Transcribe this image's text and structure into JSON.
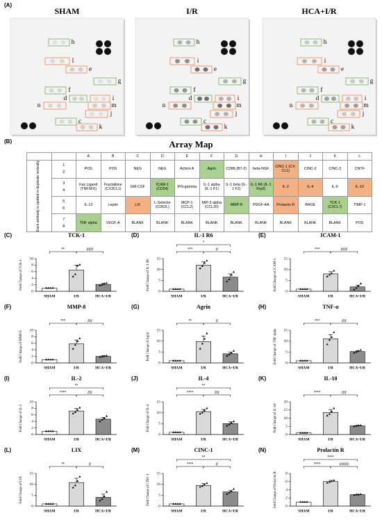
{
  "panel_a": {
    "label": "(A)",
    "blots": [
      {
        "title": "SHAM",
        "spots": [
          {
            "label": "h",
            "color": "#86c06a"
          },
          {
            "label": "l",
            "color": "#ee9a6c"
          },
          {
            "label": "e",
            "color": "#ee9a6c"
          },
          {
            "label": "g",
            "color": "#86c06a"
          },
          {
            "label": "f",
            "color": "#86c06a"
          },
          {
            "label": "d",
            "color": "#86c06a"
          },
          {
            "label": "i",
            "color": "#ee9a6c"
          },
          {
            "label": "n",
            "color": "#ee9a6c"
          },
          {
            "label": "m",
            "color": "#ee9a6c"
          },
          {
            "label": "j",
            "color": "#ee9a6c"
          },
          {
            "label": "c",
            "color": "#86c06a"
          },
          {
            "label": "k",
            "color": "#ee9a6c"
          }
        ]
      },
      {
        "title": "I/R",
        "spots": [
          {
            "label": "h",
            "color": "#86c06a"
          },
          {
            "label": "i",
            "color": "#ee9a6c"
          },
          {
            "label": "e",
            "color": "#ee9a6c"
          },
          {
            "label": "g",
            "color": "#86c06a"
          },
          {
            "label": "f",
            "color": "#86c06a"
          },
          {
            "label": "d",
            "color": "#86c06a"
          },
          {
            "label": "i",
            "color": "#ee9a6c"
          },
          {
            "label": "n",
            "color": "#ee9a6c"
          },
          {
            "label": "m",
            "color": "#ee9a6c"
          },
          {
            "label": "j",
            "color": "#ee9a6c"
          },
          {
            "label": "c",
            "color": "#86c06a"
          },
          {
            "label": "k",
            "color": "#ee9a6c"
          }
        ]
      },
      {
        "title": "HCA+I/R",
        "spots": [
          {
            "label": "h",
            "color": "#86c06a"
          },
          {
            "label": "i",
            "color": "#ee9a6c"
          },
          {
            "label": "e",
            "color": "#ee9a6c"
          },
          {
            "label": "g",
            "color": "#86c06a"
          },
          {
            "label": "f",
            "color": "#86c06a"
          },
          {
            "label": "d",
            "color": "#86c06a"
          },
          {
            "label": "i",
            "color": "#ee9a6c"
          },
          {
            "label": "n",
            "color": "#ee9a6c"
          },
          {
            "label": "m",
            "color": "#ee9a6c"
          },
          {
            "label": "j",
            "color": "#ee9a6c"
          },
          {
            "label": "c",
            "color": "#86c06a"
          },
          {
            "label": "k",
            "color": "#ee9a6c"
          }
        ]
      }
    ]
  },
  "panel_b": {
    "label": "(B)",
    "title": "Array Map",
    "side_label": "Each antibody is spotted in duplicate vertically",
    "columns": [
      "A",
      "B",
      "C",
      "D",
      "E",
      "F",
      "G",
      "H",
      "I",
      "J",
      "K",
      "L"
    ],
    "rows": [
      {
        "numbers": [
          1,
          2
        ],
        "cells": [
          "POS",
          "POS",
          "NEG",
          "NEG",
          "Activin A",
          "Agrin",
          "CD86 (B7-2)",
          "beta-NGF",
          "CINC-1 (CX-CL1)",
          "CINC-2",
          "CINC-3",
          "CNTF"
        ],
        "colors": [
          null,
          null,
          null,
          null,
          null,
          "#a9d08e",
          null,
          null,
          "#f4b183",
          null,
          null,
          null
        ]
      },
      {
        "numbers": [
          3,
          4
        ],
        "cells": [
          "Fas Ligand (TNFSF6)",
          "Fractalkine (CX3CL1)",
          "GM-CSF",
          "ICAM-1 (CD54)",
          "IFN-gamma",
          "IL-1 alpha (IL-1 F1)",
          "IL-1 beta (IL-1 F2)",
          "IL-1 R6 (IL-1 Rrp2)",
          "IL-2",
          "IL-4",
          "IL-6",
          "IL-10"
        ],
        "colors": [
          null,
          null,
          null,
          "#a9d08e",
          null,
          null,
          null,
          "#a9d08e",
          "#f4b183",
          "#f4b183",
          null,
          "#f4b183"
        ]
      },
      {
        "numbers": [
          5,
          6
        ],
        "cells": [
          "IL-13",
          "Leptin",
          "LIX",
          "L-Selectin (CD62L)",
          "MCP-1 (CCL2)",
          "MIP-3 alpha (CCL20)",
          "MMP-8",
          "PDGF-AA",
          "Prolactin R",
          "RAGE",
          "TCK-1 (CXCL7)",
          "TIMP-1"
        ],
        "colors": [
          null,
          null,
          "#f4b183",
          null,
          null,
          null,
          "#a9d08e",
          null,
          "#f4b183",
          null,
          "#a9d08e",
          null
        ]
      },
      {
        "numbers": [
          7,
          8
        ],
        "cells": [
          "TNF alpha",
          "VEGF-A",
          "BLANK",
          "BLANK",
          "BLANK",
          "BLANK",
          "BLANK",
          "BLANK",
          "BLANK",
          "BLANK",
          "BLANK",
          "POS"
        ],
        "colors": [
          "#a9d08e",
          null,
          null,
          null,
          null,
          null,
          null,
          null,
          null,
          null,
          null,
          null
        ]
      }
    ]
  },
  "chart_data": [
    {
      "type": "bar",
      "label": "(C)",
      "title": "TCK-1",
      "y_label": "Fold Change of TCK-1",
      "categories": [
        "SHAM",
        "I/R",
        "HCA+I/R"
      ],
      "colors": [
        "#ffffff",
        "#d9d9d9",
        "#8c8c8c"
      ],
      "values": [
        1,
        6.5,
        2.1
      ],
      "errors": [
        0,
        1.5,
        0.4
      ],
      "points": [
        [
          1,
          1,
          1,
          1
        ],
        [
          4.5,
          5.2,
          7.8,
          8.1
        ],
        [
          1.8,
          2,
          2.3,
          2.5
        ]
      ],
      "ylim": [
        0,
        10
      ],
      "yticks": [
        0,
        2,
        4,
        6,
        8,
        10
      ],
      "significance": [
        {
          "groups": [
            "SHAM",
            "I/R"
          ],
          "label": "**"
        },
        {
          "groups": [
            "I/R",
            "HCA+I/R"
          ],
          "label": "###"
        }
      ]
    },
    {
      "type": "bar",
      "label": "(D)",
      "title": "IL-1 R6",
      "y_label": "Fold Change of IL-1 R6",
      "categories": [
        "SHAM",
        "I/R",
        "HCA+I/R"
      ],
      "colors": [
        "#ffffff",
        "#d9d9d9",
        "#8c8c8c"
      ],
      "values": [
        1,
        12,
        6.5
      ],
      "errors": [
        0,
        1.5,
        1.5
      ],
      "points": [
        [
          1,
          1,
          1,
          1
        ],
        [
          10.5,
          11.5,
          13,
          14
        ],
        [
          4.5,
          5.5,
          7.5,
          8.8
        ]
      ],
      "ylim": [
        0,
        15
      ],
      "yticks": [
        0,
        5,
        10,
        15
      ],
      "significance": [
        {
          "groups": [
            "SHAM",
            "HCA+I/R"
          ],
          "label": "*"
        },
        {
          "groups": [
            "SHAM",
            "I/R"
          ],
          "label": "***"
        },
        {
          "groups": [
            "I/R",
            "HCA+I/R"
          ],
          "label": "#"
        }
      ]
    },
    {
      "type": "bar",
      "label": "(E)",
      "title": "ICAM-1",
      "y_label": "Fold Change of ICAM-1",
      "categories": [
        "SHAM",
        "I/R",
        "HCA+I/R"
      ],
      "colors": [
        "#ffffff",
        "#d9d9d9",
        "#8c8c8c"
      ],
      "values": [
        1,
        8,
        2
      ],
      "errors": [
        0,
        1,
        0.8
      ],
      "points": [
        [
          1,
          1,
          1,
          1
        ],
        [
          6.8,
          7.5,
          8.2,
          9.4
        ],
        [
          0.8,
          1.5,
          2.5,
          3.5
        ]
      ],
      "ylim": [
        0,
        15
      ],
      "yticks": [
        0,
        5,
        10,
        15
      ],
      "significance": [
        {
          "groups": [
            "SHAM",
            "I/R"
          ],
          "label": "***"
        },
        {
          "groups": [
            "I/R",
            "HCA+I/R"
          ],
          "label": "###"
        }
      ]
    },
    {
      "type": "bar",
      "label": "(F)",
      "title": "MMP-8",
      "y_label": "Fold Change of MMP-8",
      "categories": [
        "SHAM",
        "I/R",
        "HCA+I/R"
      ],
      "colors": [
        "#ffffff",
        "#d9d9d9",
        "#8c8c8c"
      ],
      "values": [
        1,
        5.8,
        2
      ],
      "errors": [
        0,
        1.2,
        0.2
      ],
      "points": [
        [
          1,
          1,
          1,
          1
        ],
        [
          4.3,
          5.5,
          6.6,
          7.5
        ],
        [
          1.8,
          1.9,
          2.1,
          2.2
        ]
      ],
      "ylim": [
        0,
        10
      ],
      "yticks": [
        0,
        2,
        4,
        6,
        8,
        10
      ],
      "significance": [
        {
          "groups": [
            "SHAM",
            "I/R"
          ],
          "label": "***"
        },
        {
          "groups": [
            "I/R",
            "HCA+I/R"
          ],
          "label": "##"
        }
      ]
    },
    {
      "type": "bar",
      "label": "(G)",
      "title": "Agrin",
      "y_label": "Fold Change of Agrin",
      "categories": [
        "SHAM",
        "I/R",
        "HCA+I/R"
      ],
      "colors": [
        "#ffffff",
        "#d9d9d9",
        "#8c8c8c"
      ],
      "values": [
        1,
        9.8,
        4.2
      ],
      "errors": [
        0,
        2.5,
        0.8
      ],
      "points": [
        [
          1,
          1,
          1,
          1
        ],
        [
          6.5,
          8.8,
          11,
          13.5
        ],
        [
          3.2,
          3.8,
          4.5,
          5.5
        ]
      ],
      "ylim": [
        0,
        15
      ],
      "yticks": [
        0,
        5,
        10,
        15
      ],
      "significance": [
        {
          "groups": [
            "SHAM",
            "I/R"
          ],
          "label": "**"
        },
        {
          "groups": [
            "I/R",
            "HCA+I/R"
          ],
          "label": "#"
        }
      ]
    },
    {
      "type": "bar",
      "label": "(H)",
      "title": "TNF-α",
      "y_label": "Fold Change of TNF alpha",
      "categories": [
        "SHAM",
        "I/R",
        "HCA+I/R"
      ],
      "colors": [
        "#ffffff",
        "#d9d9d9",
        "#8c8c8c"
      ],
      "values": [
        1,
        11,
        5.2
      ],
      "errors": [
        0,
        2,
        0.5
      ],
      "points": [
        [
          1,
          1,
          1,
          1
        ],
        [
          8.5,
          10.5,
          11.8,
          14
        ],
        [
          4.6,
          5,
          5.4,
          5.9
        ]
      ],
      "ylim": [
        0,
        15
      ],
      "yticks": [
        0,
        5,
        10,
        15
      ],
      "significance": [
        {
          "groups": [
            "SHAM",
            "I/R"
          ],
          "label": "***"
        },
        {
          "groups": [
            "I/R",
            "HCA+I/R"
          ],
          "label": "##"
        }
      ]
    },
    {
      "type": "bar",
      "label": "(I)",
      "title": "IL-2",
      "y_label": "Fold Change of IL-2",
      "categories": [
        "SHAM",
        "I/R",
        "HCA+I/R"
      ],
      "colors": [
        "#ffffff",
        "#d9d9d9",
        "#8c8c8c"
      ],
      "values": [
        1,
        7.2,
        4.7
      ],
      "errors": [
        0,
        0.8,
        0.5
      ],
      "points": [
        [
          1,
          1,
          1,
          1
        ],
        [
          6.4,
          6.8,
          7.5,
          8.2
        ],
        [
          4,
          4.5,
          5,
          5.6
        ]
      ],
      "ylim": [
        0,
        10
      ],
      "yticks": [
        0,
        2,
        4,
        6,
        8,
        10
      ],
      "significance": [
        {
          "groups": [
            "SHAM",
            "HCA+I/R"
          ],
          "label": "**"
        },
        {
          "groups": [
            "SHAM",
            "I/R"
          ],
          "label": "****"
        },
        {
          "groups": [
            "I/R",
            "HCA+I/R"
          ],
          "label": "##"
        }
      ]
    },
    {
      "type": "bar",
      "label": "(J)",
      "title": "IL-4",
      "y_label": "Fold Change of IL-4",
      "categories": [
        "SHAM",
        "I/R",
        "HCA+I/R"
      ],
      "colors": [
        "#ffffff",
        "#d9d9d9",
        "#8c8c8c"
      ],
      "values": [
        1,
        10.5,
        5
      ],
      "errors": [
        0,
        1,
        0.8
      ],
      "points": [
        [
          1,
          1,
          1,
          1
        ],
        [
          9.5,
          10,
          11,
          12
        ],
        [
          4,
          4.6,
          5.4,
          6
        ]
      ],
      "ylim": [
        0,
        15
      ],
      "yticks": [
        0,
        5,
        10,
        15
      ],
      "significance": [
        {
          "groups": [
            "SHAM",
            "HCA+I/R"
          ],
          "label": "**"
        },
        {
          "groups": [
            "SHAM",
            "I/R"
          ],
          "label": "****"
        },
        {
          "groups": [
            "I/R",
            "HCA+I/R"
          ],
          "label": "##"
        }
      ]
    },
    {
      "type": "bar",
      "label": "(K)",
      "title": "IL-10",
      "y_label": "Fold Change of IL-10",
      "categories": [
        "SHAM",
        "I/R",
        "HCA+I/R"
      ],
      "colors": [
        "#ffffff",
        "#d9d9d9",
        "#8c8c8c"
      ],
      "values": [
        1,
        13.5,
        5.3
      ],
      "errors": [
        0,
        1.8,
        0.3
      ],
      "points": [
        [
          1,
          1,
          1,
          1
        ],
        [
          11.5,
          12.5,
          14,
          16
        ],
        [
          5,
          5.2,
          5.5,
          5.6
        ]
      ],
      "ylim": [
        0,
        20
      ],
      "yticks": [
        0,
        5,
        10,
        15,
        20
      ],
      "significance": [
        {
          "groups": [
            "SHAM",
            "I/R"
          ],
          "label": "****"
        },
        {
          "groups": [
            "I/R",
            "HCA+I/R"
          ],
          "label": "##"
        }
      ]
    },
    {
      "type": "bar",
      "label": "(L)",
      "title": "LIX",
      "y_label": "Fold Change of LIX",
      "categories": [
        "SHAM",
        "I/R",
        "HCA+I/R"
      ],
      "colors": [
        "#ffffff",
        "#d9d9d9",
        "#8c8c8c"
      ],
      "values": [
        1,
        10.8,
        4
      ],
      "errors": [
        0,
        2,
        1.5
      ],
      "points": [
        [
          1,
          1,
          1,
          1
        ],
        [
          8.5,
          9.5,
          11.5,
          13.5
        ],
        [
          2.5,
          3.2,
          4.5,
          6.5
        ]
      ],
      "ylim": [
        0,
        15
      ],
      "yticks": [
        0,
        5,
        10,
        15
      ],
      "significance": [
        {
          "groups": [
            "SHAM",
            "I/R"
          ],
          "label": "**"
        },
        {
          "groups": [
            "I/R",
            "HCA+I/R"
          ],
          "label": "#"
        }
      ]
    },
    {
      "type": "bar",
      "label": "(M)",
      "title": "CINC-1",
      "y_label": "Fold Change of CINC-1",
      "categories": [
        "SHAM",
        "I/R",
        "HCA+I/R"
      ],
      "colors": [
        "#ffffff",
        "#d9d9d9",
        "#8c8c8c"
      ],
      "values": [
        1,
        9.5,
        6.5
      ],
      "errors": [
        0,
        0.8,
        0.8
      ],
      "points": [
        [
          1,
          1,
          1,
          1
        ],
        [
          8.8,
          9.2,
          9.8,
          10.5
        ],
        [
          5.5,
          6.2,
          6.8,
          7.8
        ]
      ],
      "ylim": [
        0,
        15
      ],
      "yticks": [
        0,
        5,
        10,
        15
      ],
      "significance": [
        {
          "groups": [
            "SHAM",
            "HCA+I/R"
          ],
          "label": "**"
        },
        {
          "groups": [
            "SHAM",
            "I/R"
          ],
          "label": "****"
        },
        {
          "groups": [
            "I/R",
            "HCA+I/R"
          ],
          "label": "#"
        }
      ]
    },
    {
      "type": "bar",
      "label": "(N)",
      "title": "Prolactin R",
      "y_label": "Fold Change of Prolactin R",
      "categories": [
        "SHAM",
        "I/R",
        "HCA+I/R"
      ],
      "colors": [
        "#ffffff",
        "#d9d9d9",
        "#8c8c8c"
      ],
      "values": [
        1,
        6,
        2.8
      ],
      "errors": [
        0,
        0.3,
        0.1
      ],
      "points": [
        [
          1,
          1,
          1,
          1
        ],
        [
          5.7,
          5.9,
          6.1,
          6.3
        ],
        [
          2.7,
          2.8,
          2.8,
          2.9
        ]
      ],
      "ylim": [
        0,
        8
      ],
      "yticks": [
        0,
        2,
        4,
        6,
        8
      ],
      "significance": [
        {
          "groups": [
            "SHAM",
            "HCA+I/R"
          ],
          "label": "****"
        },
        {
          "groups": [
            "SHAM",
            "I/R"
          ],
          "label": "****"
        },
        {
          "groups": [
            "I/R",
            "HCA+I/R"
          ],
          "label": "####"
        }
      ]
    }
  ]
}
